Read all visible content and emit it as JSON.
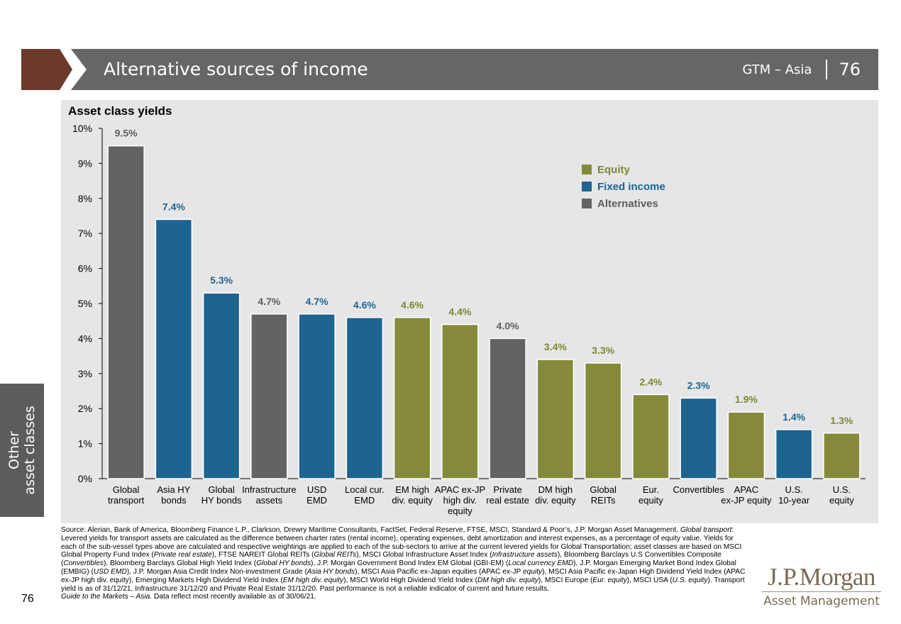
{
  "header": {
    "title": "Alternative sources of income",
    "gtm_label": "GTM – Asia",
    "page_number": "76",
    "brown_color": "#6b3a2a",
    "bar_color": "#666666"
  },
  "side_tab": {
    "line1": "Other",
    "line2": "asset classes"
  },
  "legend": {
    "items": [
      {
        "label": "Equity",
        "color": "#858a3a"
      },
      {
        "label": "Fixed income",
        "color": "#1e6491"
      },
      {
        "label": "Alternatives",
        "color": "#636363"
      }
    ]
  },
  "chart_data": {
    "type": "bar",
    "title": "Asset class yields",
    "xlabel": "",
    "ylabel": "",
    "ylim": [
      0,
      10
    ],
    "y_ticks": [
      "0%",
      "1%",
      "2%",
      "3%",
      "4%",
      "5%",
      "6%",
      "7%",
      "8%",
      "9%",
      "10%"
    ],
    "categories": [
      [
        "Global",
        "transport"
      ],
      [
        "Asia HY",
        "bonds"
      ],
      [
        "Global",
        "HY bonds"
      ],
      [
        "Infrastructure",
        "assets"
      ],
      [
        "USD",
        "EMD"
      ],
      [
        "Local cur.",
        "EMD"
      ],
      [
        "EM high",
        "div. equity"
      ],
      [
        "APAC ex-JP",
        "high div.",
        "equity"
      ],
      [
        "Private",
        "real estate"
      ],
      [
        "DM high",
        "div. equity"
      ],
      [
        "Global",
        "REITs"
      ],
      [
        "Eur.",
        "equity"
      ],
      [
        "Convertibles"
      ],
      [
        "APAC",
        "ex-JP equity"
      ],
      [
        "U.S.",
        "10-year"
      ],
      [
        "U.S.",
        "equity"
      ]
    ],
    "values": [
      9.5,
      7.4,
      5.3,
      4.7,
      4.7,
      4.6,
      4.6,
      4.4,
      4.0,
      3.4,
      3.3,
      2.4,
      2.3,
      1.9,
      1.4,
      1.3
    ],
    "labels": [
      "9.5%",
      "7.4%",
      "5.3%",
      "4.7%",
      "4.7%",
      "4.6%",
      "4.6%",
      "4.4%",
      "4.0%",
      "3.4%",
      "3.3%",
      "2.4%",
      "2.3%",
      "1.9%",
      "1.4%",
      "1.3%"
    ],
    "groups": [
      "Alternatives",
      "Fixed income",
      "Fixed income",
      "Alternatives",
      "Fixed income",
      "Fixed income",
      "Equity",
      "Equity",
      "Alternatives",
      "Equity",
      "Equity",
      "Equity",
      "Fixed income",
      "Equity",
      "Fixed income",
      "Equity"
    ],
    "colors": {
      "Equity": "#858a3a",
      "Fixed income": "#1e6491",
      "Alternatives": "#636363"
    },
    "label_colors": {
      "Equity": "#7f8534",
      "Fixed income": "#1e6491",
      "Alternatives": "#5e5e5e"
    }
  },
  "source": {
    "intro": "Source: Alerian, Bank of America, Bloomberg Finance L.P., Clarkson, Drewry Maritime Consultants, FactSet, Federal Reserve, FTSE, MSCI, Standard & Poor’s, J.P. Morgan Asset Management.",
    "gt_label": "Global transport",
    "gt_text": ": Levered yields for transport assets are calculated as the difference between charter rates (rental income), operating expenses, debt amortization and interest expenses, as a percentage of equity value. Yields for each of the sub-vessel types above are calculated and respective weightings are applied to each of the sub-sectors to arrive at the current levered yields for Global Transportation; asset classes are based on MSCI Global Property Fund Index (",
    "pre_label": "Private real estate",
    "t1": "), FTSE NAREIT Global REITs (",
    "reits_label": "Global REITs",
    "t2": "), MSCI Global Infrastructure Asset Index (",
    "infra_label": "Infrastructure assets",
    "t3": "), Bloomberg Barclays U.S Convertibles Composite (",
    "conv_label": "Convertibles",
    "t4": "), Bloomberg Barclays Global High Yield Index (",
    "ghy_label": "Global HY bonds",
    "t5": "), J.P. Morgan Government Bond Index EM Global (GBI-EM) (",
    "lc_label": "Local currency EMD",
    "t6": "), J.P. Morgan Emerging Market Bond Index Global (EMBIG) (",
    "usd_label": "USD EMD",
    "t7": "), J.P. Morgan Asia Credit Index Non-investment Grade (",
    "ahy_label": "Asia HY bonds",
    "t8": "), MSCI Asia Pacific ex-Japan equities (APAC ex-JP ",
    "apac_label": "equity",
    "t9": "), MSCI Asia Pacific ex-Japan High Dividend Yield Index (APAC ex-JP high div. equity),  Emerging Markets High Dividend Yield Index (",
    "em_label": "EM high div. equity",
    "t10": "), MSCI World High Dividend Yield Index (",
    "dm_label": "DM high div. equity",
    "t11": "), MSCI Europe (",
    "eur_label": "Eur. equity",
    "t12": "), MSCI USA (",
    "us_label": "U.S. equity",
    "t13": "). Transport yield is as of 31/12/21, Infrastructure 31/12/20 and Private Real Estate 31/12/20. Past performance is not a reliable indicator of current and future results.",
    "gtm_label": "Guide to the Markets – Asia.",
    "gtm_text": " Data reflect most recently available as of 30/06/21."
  },
  "footer": {
    "page_number": "76"
  },
  "logo": {
    "name": "J.P.Morgan",
    "sub": "Asset Management",
    "color": "#7a6a55"
  }
}
